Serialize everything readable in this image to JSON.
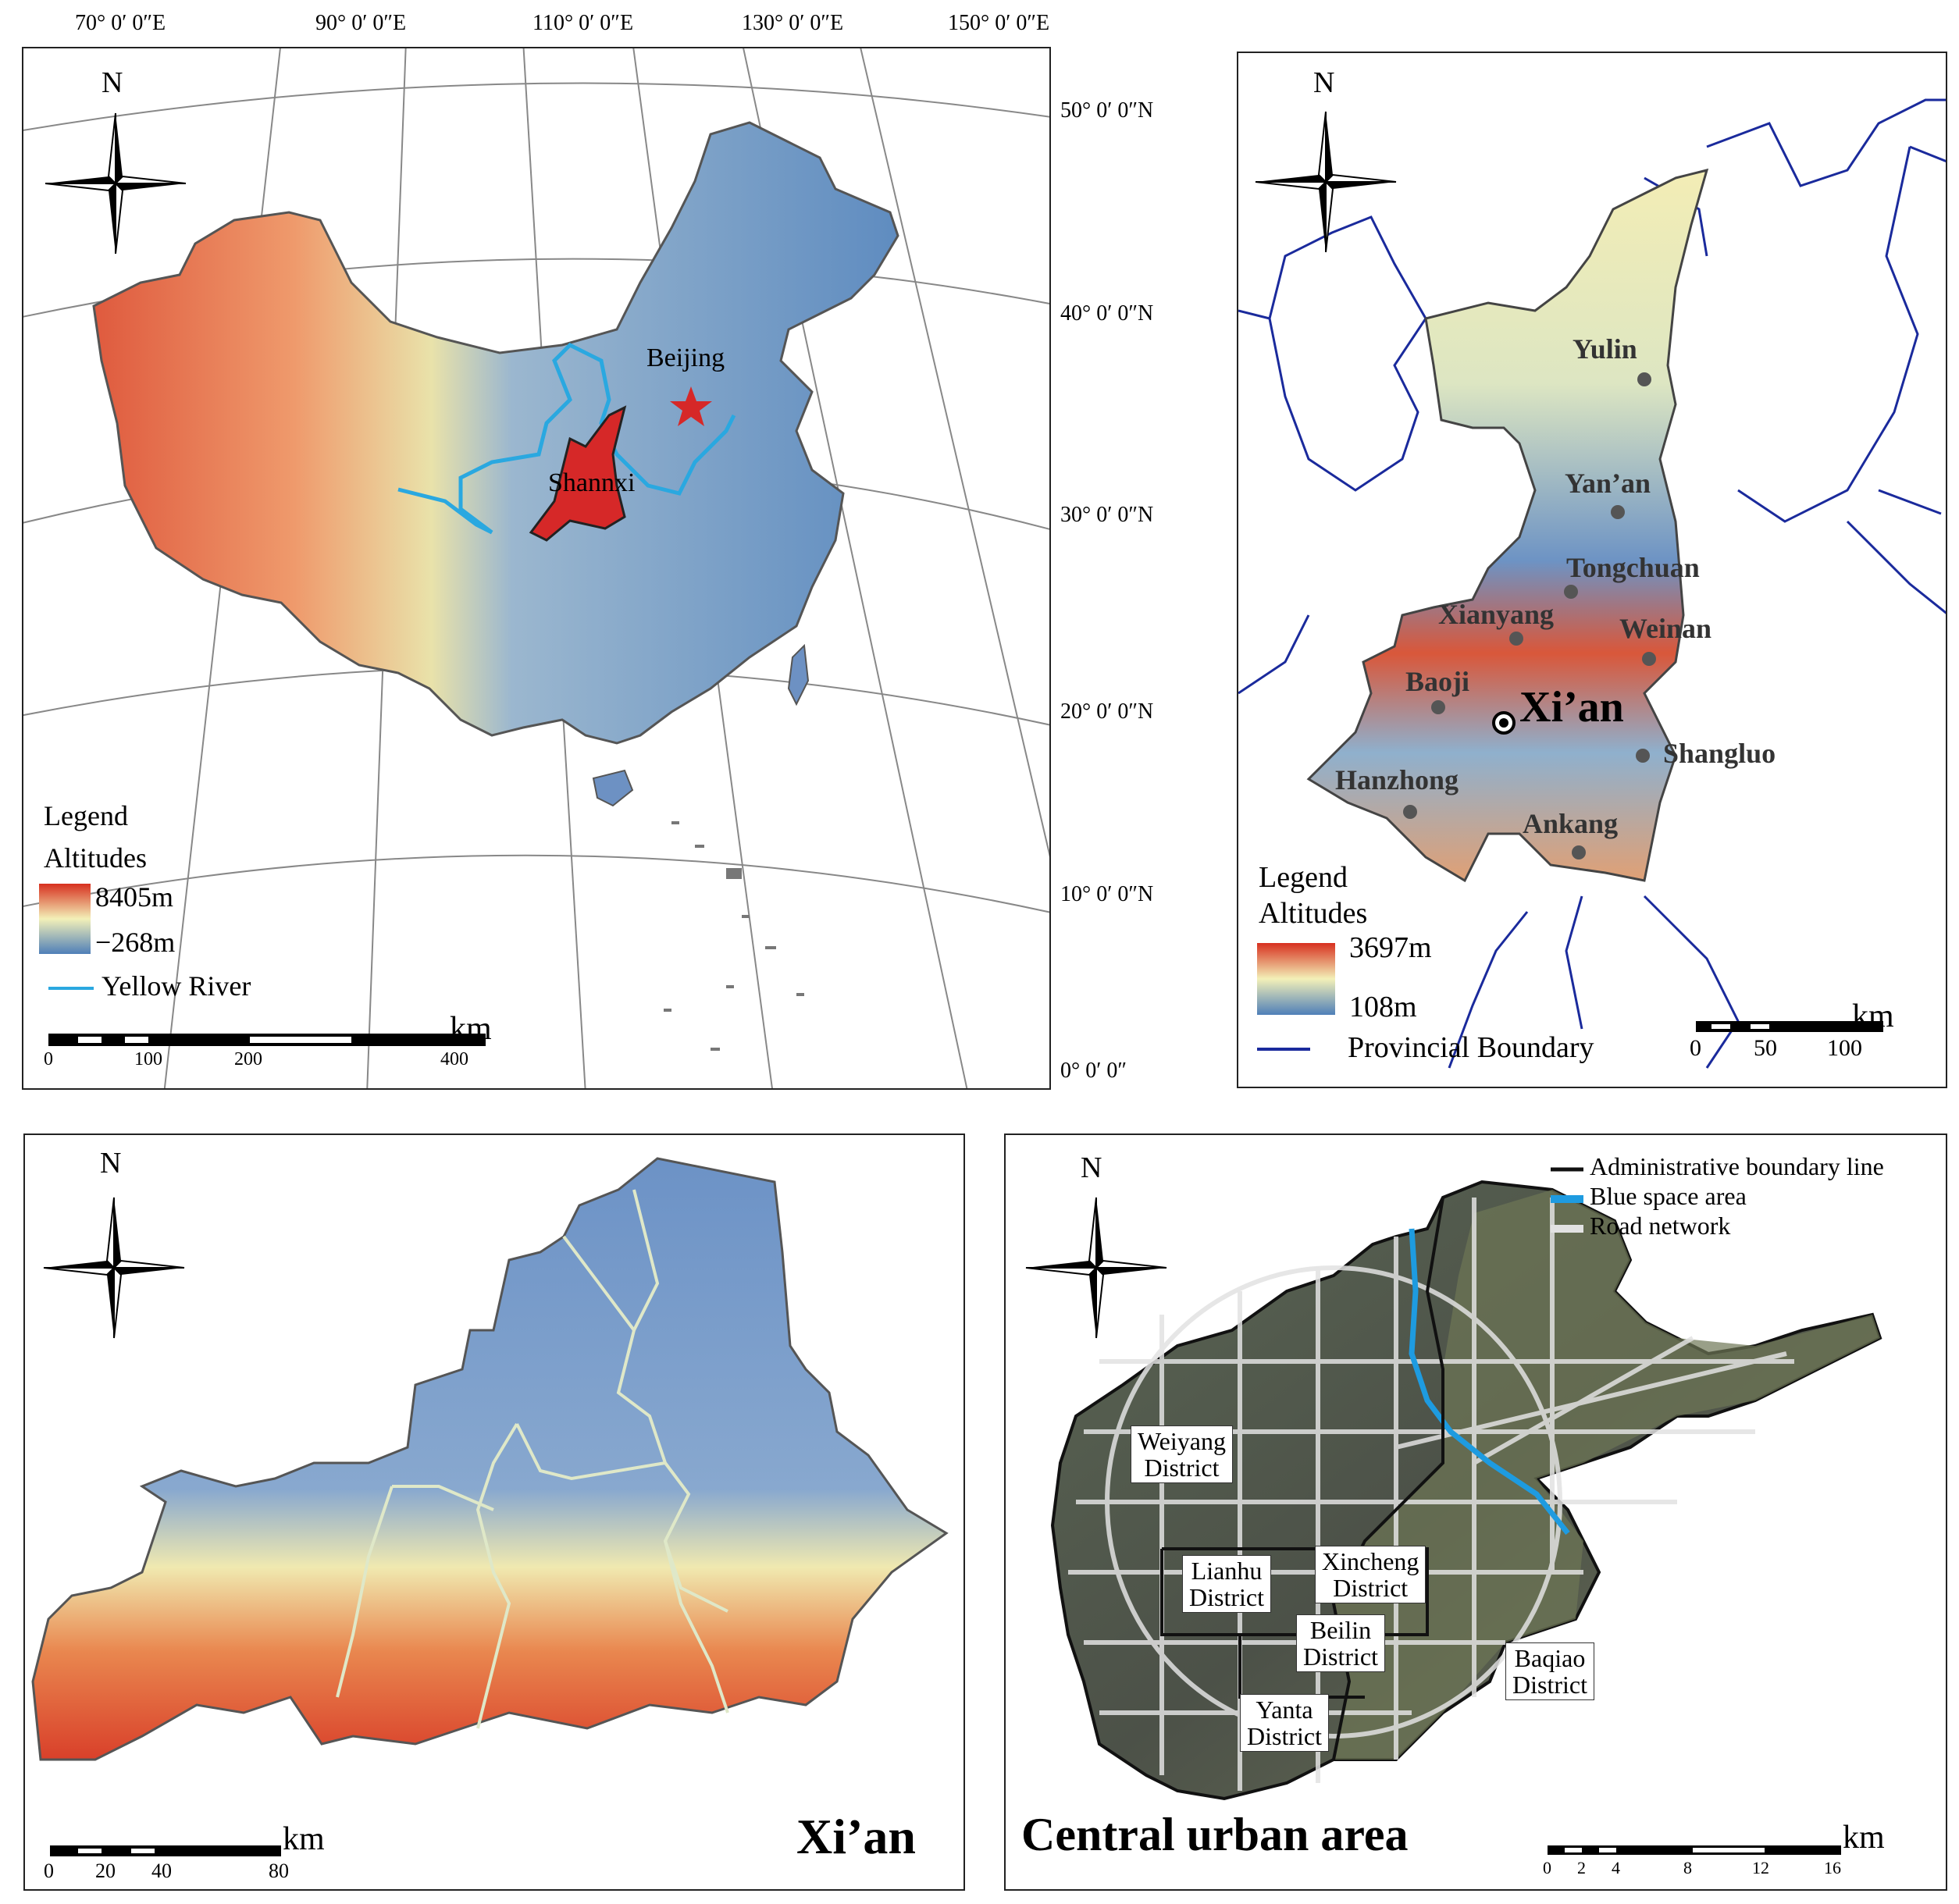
{
  "china_map": {
    "longitudes": [
      "70°  0′ 0″E",
      "90°  0′ 0″E",
      "110°  0′ 0″E",
      "130°  0′ 0″E",
      "150°  0′ 0″E"
    ],
    "latitudes": [
      "50°  0′ 0″N",
      "40°  0′ 0″N",
      "30°  0′ 0″N",
      "20°  0′ 0″N",
      "10°  0′ 0″N",
      "0°  0′ 0″"
    ],
    "north": "N",
    "beijing": "Beijing",
    "shannxi": "Shannxi",
    "legend_title": "Legend",
    "legend_sub": "Altitudes",
    "alt_max": "8405m",
    "alt_min": "−268m",
    "river": "Yellow River",
    "scale_unit": "km",
    "scale_ticks": [
      "0",
      "100",
      "200",
      "400"
    ],
    "colors": {
      "high": "#d7301f",
      "mid": "#f3f0b8",
      "low": "#4f7fb8",
      "province": "#d62828",
      "river": "#2aa8e0"
    }
  },
  "shaanxi_map": {
    "north": "N",
    "cities": [
      "Yulin",
      "Yan’an",
      "Tongchuan",
      "Xianyang",
      "Weinan",
      "Baoji",
      "Shangluo",
      "Hanzhong",
      "Ankang"
    ],
    "capital": "Xi’an",
    "legend_title": "Legend",
    "legend_sub": "Altitudes",
    "alt_max": "3697m",
    "alt_min": "108m",
    "boundary": "Provincial Boundary",
    "scale_unit": "km",
    "scale_ticks": [
      "0",
      "50",
      "100"
    ],
    "colors": {
      "boundary": "#1a2a9c"
    }
  },
  "xian_map": {
    "north": "N",
    "title": "Xi’an",
    "scale_unit": "km",
    "scale_ticks": [
      "0",
      "20",
      "40",
      "80"
    ]
  },
  "urban_map": {
    "north": "N",
    "title": "Central urban area",
    "legend": [
      "Administrative boundary line",
      "Blue space area",
      "Road network"
    ],
    "districts": [
      "Weiyang\nDistrict",
      "Lianhu\nDistrict",
      "Xincheng\nDistrict",
      "Beilin\nDistrict",
      "Baqiao\nDistrict",
      "Yanta\nDistrict"
    ],
    "scale_unit": "km",
    "scale_ticks": [
      "0",
      "2",
      "4",
      "8",
      "12",
      "16"
    ],
    "colors": {
      "boundary": "#111111",
      "blue": "#1e9be0",
      "road": "#e2e2e2"
    }
  }
}
